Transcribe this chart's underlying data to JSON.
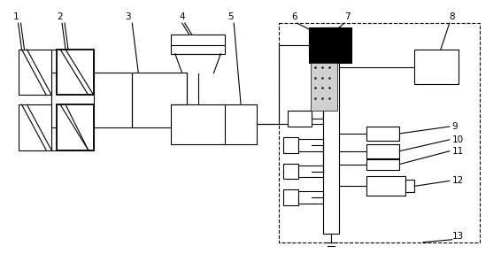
{
  "bg_color": "#ffffff",
  "line_color": "#000000",
  "lw": 0.8,
  "fig_w": 5.66,
  "fig_h": 2.87,
  "dpi": 100
}
